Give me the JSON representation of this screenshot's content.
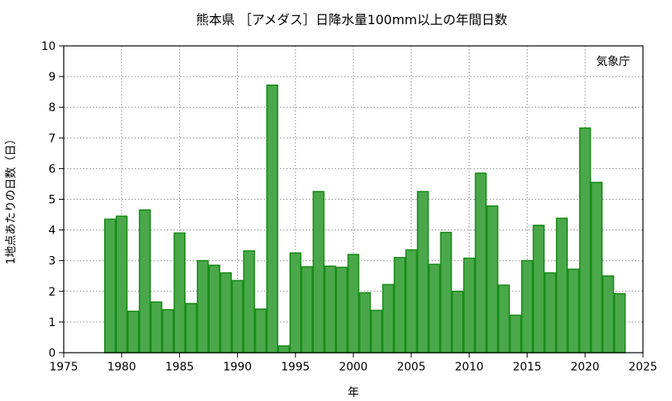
{
  "chart_data": {
    "type": "bar",
    "title": "熊本県 ［アメダス］日降水量100mm以上の年間日数",
    "xlabel": "年",
    "ylabel": "1地点あたりの日数（日）",
    "annotation": "気象庁",
    "xlim": [
      1975,
      2025
    ],
    "ylim": [
      0,
      10
    ],
    "xticks": [
      1975,
      1980,
      1985,
      1990,
      1995,
      2000,
      2005,
      2010,
      2015,
      2020,
      2025
    ],
    "yticks": [
      0,
      1,
      2,
      3,
      4,
      5,
      6,
      7,
      8,
      9,
      10
    ],
    "grid": true,
    "bar_color": "#4aa84a",
    "bar_edge_color": "#1a8c1a",
    "x": [
      1979,
      1980,
      1981,
      1982,
      1983,
      1984,
      1985,
      1986,
      1987,
      1988,
      1989,
      1990,
      1991,
      1992,
      1993,
      1994,
      1995,
      1996,
      1997,
      1998,
      1999,
      2000,
      2001,
      2002,
      2003,
      2004,
      2005,
      2006,
      2007,
      2008,
      2009,
      2010,
      2011,
      2012,
      2013,
      2014,
      2015,
      2016,
      2017,
      2018,
      2019,
      2020,
      2021,
      2022,
      2023
    ],
    "values": [
      4.35,
      4.45,
      1.35,
      4.65,
      1.65,
      1.4,
      3.9,
      1.6,
      3.0,
      2.85,
      2.6,
      2.35,
      3.32,
      1.42,
      8.72,
      0.22,
      3.25,
      2.8,
      5.25,
      2.82,
      2.78,
      3.2,
      1.95,
      1.38,
      2.22,
      3.1,
      3.35,
      5.25,
      2.88,
      3.92,
      2.0,
      3.08,
      5.85,
      4.78,
      2.2,
      1.22,
      3.0,
      4.15,
      2.6,
      4.38,
      2.72,
      7.32,
      5.55,
      2.5,
      1.92
    ]
  }
}
